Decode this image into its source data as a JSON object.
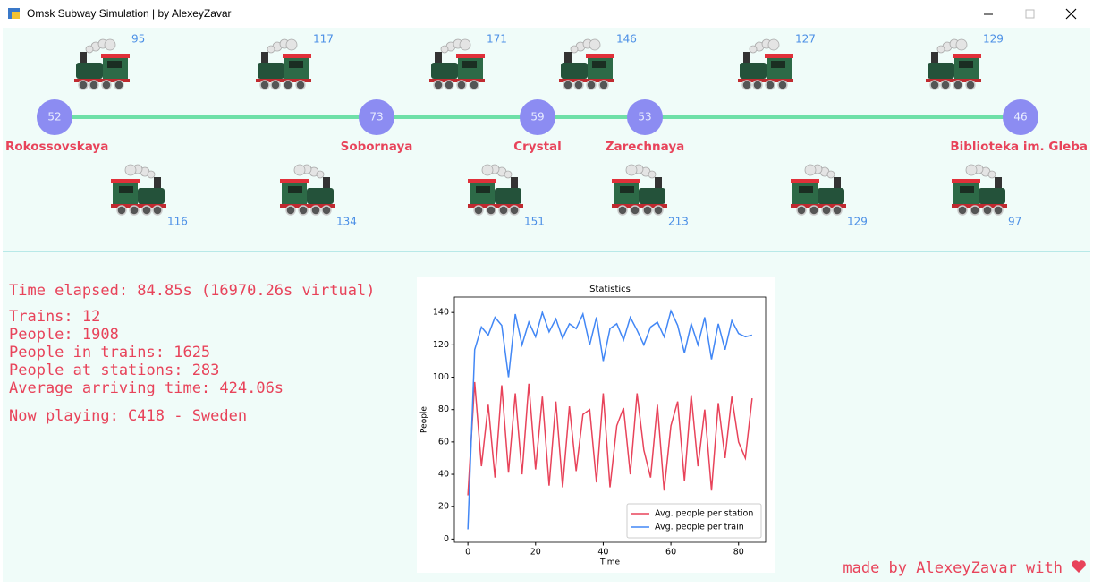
{
  "window": {
    "title": "Omsk Subway Simulation | by AlexeyZavar"
  },
  "stations": [
    {
      "name": "Rokossovskaya",
      "people": 52
    },
    {
      "name": "Sobornaya",
      "people": 73
    },
    {
      "name": "Crystal",
      "people": 59
    },
    {
      "name": "Zarechnaya",
      "people": 53
    },
    {
      "name": "Biblioteka im. Gleba",
      "people": 46
    }
  ],
  "trains": {
    "top": [
      95,
      117,
      171,
      146,
      127,
      129
    ],
    "bottom": [
      116,
      134,
      151,
      213,
      129,
      97
    ]
  },
  "stats": {
    "time": "Time elapsed: 84.85s (16970.26s virtual)",
    "lines": [
      "Trains: 12",
      "People: 1908",
      "People in trains: 1625",
      "People at stations: 283",
      "Average arriving time: 424.06s"
    ],
    "now_playing": "Now playing: C418 - Sweden"
  },
  "footer": "made by AlexeyZavar with",
  "chart_data": {
    "type": "line",
    "title": "Statistics",
    "x_label": "Time",
    "y_label": "People",
    "x": [
      0,
      2,
      4,
      6,
      8,
      10,
      12,
      14,
      16,
      18,
      20,
      22,
      24,
      26,
      28,
      30,
      32,
      34,
      36,
      38,
      40,
      42,
      44,
      46,
      48,
      50,
      52,
      54,
      56,
      58,
      60,
      62,
      64,
      66,
      68,
      70,
      72,
      74,
      76,
      78,
      80,
      82,
      84
    ],
    "series": [
      {
        "name": "Avg. people per station",
        "color": "#e8435a",
        "values": [
          27,
          97,
          45,
          83,
          38,
          95,
          41,
          90,
          40,
          96,
          43,
          88,
          33,
          85,
          32,
          82,
          42,
          77,
          80,
          35,
          90,
          32,
          70,
          81,
          40,
          90,
          55,
          38,
          83,
          30,
          70,
          85,
          36,
          89,
          45,
          80,
          30,
          84,
          50,
          88,
          60,
          50,
          87
        ]
      },
      {
        "name": "Avg. people per train",
        "color": "#4287f5",
        "values": [
          6,
          117,
          131,
          126,
          137,
          132,
          100,
          139,
          120,
          134,
          125,
          140,
          128,
          136,
          124,
          133,
          130,
          139,
          120,
          137,
          110,
          130,
          133,
          123,
          137,
          129,
          120,
          131,
          134,
          125,
          141,
          132,
          115,
          133,
          120,
          137,
          111,
          133,
          117,
          135,
          127,
          125,
          126
        ]
      }
    ],
    "xlim": [
      -4,
      88
    ],
    "ylim": [
      -2,
      149.5
    ],
    "xticks": [
      0,
      20,
      40,
      60,
      80
    ],
    "yticks": [
      0,
      20,
      40,
      60,
      80,
      100,
      120,
      140
    ],
    "legend": "lower right"
  }
}
